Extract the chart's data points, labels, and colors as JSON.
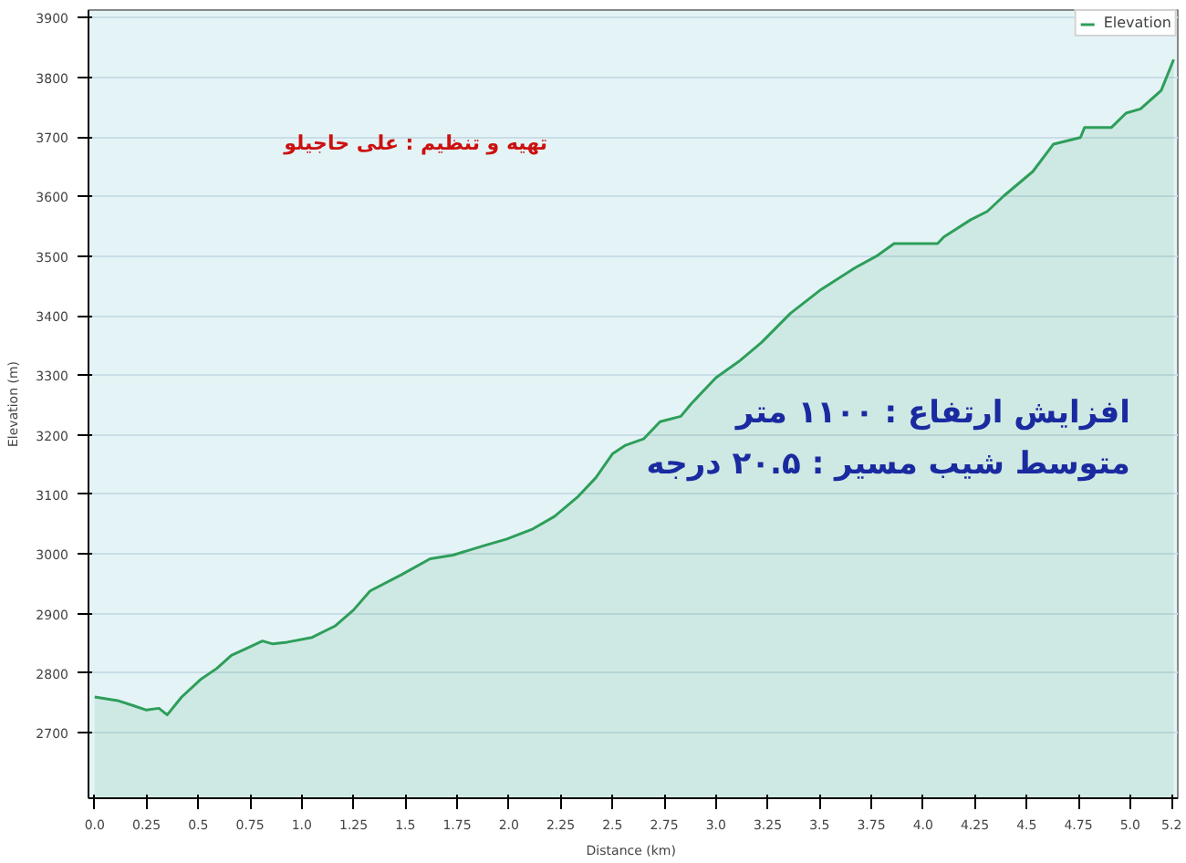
{
  "chart_data": {
    "type": "area",
    "xlabel": "Distance  (km)",
    "ylabel": "Elevation (m)",
    "annotations": [
      "تهیه و تنظیم : علی حاجیلو",
      "افزایش ارتفاع : ۱۱۰۰ متر",
      "متوسط شیب مسیر : ۲۰.۵ درجه"
    ],
    "series": [
      {
        "name": "Elevation",
        "color": "#2e9e5a",
        "x": [
          0,
          0.11,
          0.19,
          0.25,
          0.31,
          0.35,
          0.42,
          0.51,
          0.59,
          0.66,
          0.73,
          0.81,
          0.86,
          0.93,
          1.05,
          1.16,
          1.25,
          1.33,
          1.48,
          1.62,
          1.73,
          1.88,
          1.99,
          2.11,
          2.22,
          2.33,
          2.42,
          2.5,
          2.56,
          2.65,
          2.73,
          2.83,
          2.88,
          3.0,
          3.11,
          3.22,
          3.36,
          3.5,
          3.67,
          3.78,
          3.86,
          4.07,
          4.1,
          4.23,
          4.31,
          4.39,
          4.53,
          4.63,
          4.76,
          4.78,
          4.91,
          4.98,
          5.05,
          5.15,
          5.21
        ],
        "values": [
          2760,
          2754,
          2745,
          2738,
          2741,
          2730,
          2760,
          2789,
          2808,
          2830,
          2841,
          2854,
          2849,
          2852,
          2860,
          2879,
          2906,
          2938,
          2965,
          2992,
          2998,
          3014,
          3025,
          3041,
          3063,
          3095,
          3128,
          3168,
          3182,
          3193,
          3222,
          3231,
          3252,
          3296,
          3323,
          3355,
          3404,
          3442,
          3480,
          3501,
          3521,
          3521,
          3532,
          3561,
          3575,
          3601,
          3642,
          3688,
          3699,
          3716,
          3716,
          3740,
          3747,
          3778,
          3830
        ]
      }
    ],
    "xlim": [
      -0.03,
      5.23
    ],
    "ylim": [
      2590,
      3913
    ],
    "xticks": [
      {
        "value": 0,
        "label": "0.0"
      },
      0.25,
      0.5,
      0.75,
      {
        "value": 1,
        "label": "1.0"
      },
      1.25,
      1.5,
      1.75,
      {
        "value": 2,
        "label": "2.0"
      },
      2.25,
      2.5,
      2.75,
      {
        "value": 3,
        "label": "3.0"
      },
      3.25,
      3.5,
      3.75,
      {
        "value": 4,
        "label": "4.0"
      },
      4.25,
      4.5,
      4.75,
      {
        "value": 5,
        "label": "5.0"
      },
      5.2
    ],
    "yticks": [
      2700,
      2800,
      2900,
      3000,
      3100,
      3200,
      3300,
      3400,
      3500,
      3600,
      3700,
      3800,
      3900
    ],
    "grid": "y",
    "legend": "top right"
  }
}
